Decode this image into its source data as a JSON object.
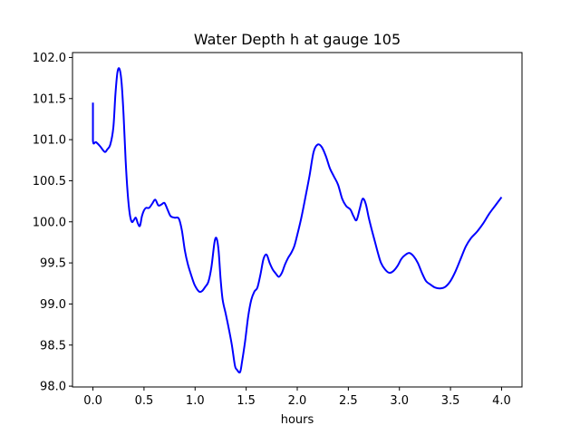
{
  "chart_data": {
    "type": "line",
    "title": "Water Depth h at gauge 105",
    "xlabel": "hours",
    "ylabel": "",
    "xlim": [
      -0.2,
      4.2
    ],
    "ylim": [
      97.99,
      102.06
    ],
    "grid": false,
    "xticks": [
      "0.0",
      "0.5",
      "1.0",
      "1.5",
      "2.0",
      "2.5",
      "3.0",
      "3.5",
      "4.0"
    ],
    "yticks": [
      "98.0",
      "98.5",
      "99.0",
      "99.5",
      "100.0",
      "100.5",
      "101.0",
      "101.5",
      "102.0"
    ],
    "series": [
      {
        "color": "#0000ff",
        "x": [
          0.0,
          0.0,
          0.03,
          0.07,
          0.1,
          0.12,
          0.14,
          0.17,
          0.2,
          0.22,
          0.24,
          0.26,
          0.28,
          0.3,
          0.32,
          0.34,
          0.36,
          0.38,
          0.4,
          0.42,
          0.44,
          0.46,
          0.48,
          0.5,
          0.52,
          0.55,
          0.58,
          0.61,
          0.64,
          0.67,
          0.7,
          0.73,
          0.76,
          0.8,
          0.84,
          0.87,
          0.9,
          0.93,
          0.97,
          1.0,
          1.04,
          1.07,
          1.1,
          1.13,
          1.16,
          1.19,
          1.21,
          1.23,
          1.25,
          1.27,
          1.3,
          1.33,
          1.36,
          1.39,
          1.41,
          1.44,
          1.46,
          1.49,
          1.52,
          1.55,
          1.58,
          1.61,
          1.64,
          1.67,
          1.7,
          1.73,
          1.76,
          1.79,
          1.82,
          1.85,
          1.88,
          1.91,
          1.94,
          1.97,
          2.0,
          2.04,
          2.08,
          2.12,
          2.16,
          2.2,
          2.24,
          2.28,
          2.32,
          2.36,
          2.4,
          2.44,
          2.48,
          2.52,
          2.55,
          2.58,
          2.61,
          2.64,
          2.67,
          2.7,
          2.73,
          2.76,
          2.79,
          2.82,
          2.86,
          2.9,
          2.94,
          2.98,
          3.02,
          3.06,
          3.1,
          3.14,
          3.18,
          3.22,
          3.26,
          3.3,
          3.35,
          3.4,
          3.45,
          3.5,
          3.55,
          3.6,
          3.65,
          3.7,
          3.76,
          3.82,
          3.88,
          3.94,
          4.0
        ],
        "y": [
          101.45,
          100.99,
          100.97,
          100.92,
          100.87,
          100.85,
          100.88,
          100.94,
          101.15,
          101.55,
          101.82,
          101.86,
          101.7,
          101.3,
          100.75,
          100.35,
          100.1,
          100.0,
          100.02,
          100.05,
          99.98,
          99.95,
          100.07,
          100.14,
          100.17,
          100.17,
          100.22,
          100.27,
          100.2,
          100.21,
          100.23,
          100.15,
          100.07,
          100.05,
          100.04,
          99.9,
          99.65,
          99.48,
          99.32,
          99.22,
          99.15,
          99.16,
          99.21,
          99.27,
          99.45,
          99.75,
          99.8,
          99.65,
          99.3,
          99.05,
          98.88,
          98.7,
          98.5,
          98.25,
          98.2,
          98.17,
          98.3,
          98.55,
          98.85,
          99.05,
          99.15,
          99.2,
          99.36,
          99.55,
          99.6,
          99.5,
          99.42,
          99.37,
          99.33,
          99.38,
          99.48,
          99.56,
          99.62,
          99.7,
          99.84,
          100.05,
          100.3,
          100.56,
          100.85,
          100.94,
          100.91,
          100.8,
          100.65,
          100.55,
          100.45,
          100.28,
          100.19,
          100.15,
          100.07,
          100.02,
          100.15,
          100.28,
          100.22,
          100.05,
          99.9,
          99.76,
          99.62,
          99.5,
          99.42,
          99.38,
          99.4,
          99.46,
          99.55,
          99.6,
          99.62,
          99.58,
          99.5,
          99.38,
          99.28,
          99.24,
          99.2,
          99.19,
          99.21,
          99.28,
          99.4,
          99.55,
          99.7,
          99.8,
          99.88,
          99.98,
          100.1,
          100.2,
          100.3
        ]
      }
    ]
  }
}
